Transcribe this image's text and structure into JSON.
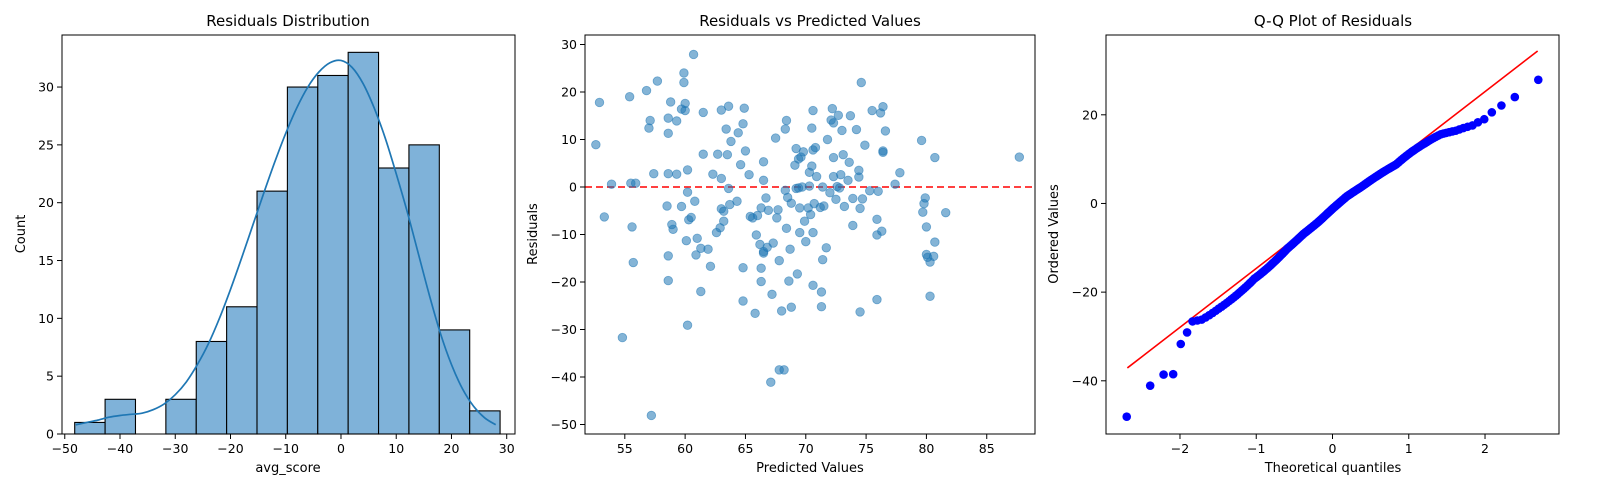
{
  "figure": {
    "background": "#ffffff"
  },
  "chart_data": [
    {
      "type": "bar",
      "title": "Residuals Distribution",
      "xlabel": "avg_score",
      "ylabel": "Count",
      "xlim": [
        -50.5,
        31.5
      ],
      "ylim": [
        0,
        34.5
      ],
      "xticks": [
        -50,
        -40,
        -30,
        -20,
        -10,
        0,
        10,
        20,
        30
      ],
      "yticks": [
        0,
        5,
        10,
        15,
        20,
        25,
        30
      ],
      "bin_edges": [
        -48.2,
        -42.7,
        -37.2,
        -31.7,
        -26.2,
        -20.7,
        -15.2,
        -9.7,
        -4.2,
        1.3,
        6.8,
        12.3,
        17.8,
        23.3,
        28.8
      ],
      "values": [
        1,
        3,
        0,
        3,
        8,
        11,
        21,
        30,
        31,
        33,
        23,
        25,
        9,
        2
      ],
      "bar_color": "#7fb2d9",
      "kde": {
        "color": "#1f77b4",
        "x": [
          -48,
          -46,
          -44,
          -42,
          -40,
          -38,
          -36,
          -34,
          -32,
          -30,
          -28,
          -26,
          -24,
          -22,
          -20,
          -18,
          -16,
          -14,
          -12,
          -10,
          -8,
          -6,
          -4,
          -2,
          0,
          2,
          4,
          6,
          8,
          10,
          12,
          14,
          16,
          18,
          20,
          22,
          24,
          26,
          28
        ],
        "y": [
          0.8,
          1.0,
          1.2,
          1.45,
          1.6,
          1.7,
          1.8,
          2.1,
          2.6,
          3.4,
          4.5,
          6.0,
          7.8,
          10.0,
          12.5,
          15.2,
          18.0,
          20.8,
          23.5,
          26.0,
          28.2,
          30.0,
          31.3,
          32.1,
          32.3,
          31.7,
          30.3,
          28.2,
          25.6,
          22.5,
          19.2,
          15.6,
          12.0,
          8.7,
          6.0,
          3.9,
          2.4,
          1.4,
          0.8
        ]
      }
    },
    {
      "type": "scatter",
      "title": "Residuals vs Predicted Values",
      "xlabel": "Predicted Values",
      "ylabel": "Residuals",
      "xlim": [
        51.7,
        89.0
      ],
      "ylim": [
        -52,
        32
      ],
      "xticks": [
        55,
        60,
        65,
        70,
        75,
        80,
        85
      ],
      "yticks": [
        -50,
        -40,
        -30,
        -20,
        -10,
        0,
        10,
        20,
        30
      ],
      "point_color": "#1f77b4",
      "point_alpha": 0.55,
      "reference_line": {
        "y": 0,
        "color": "#ff0000",
        "style": "dashed"
      },
      "points": [
        [
          52.6,
          8.9
        ],
        [
          52.9,
          17.8
        ],
        [
          53.3,
          -6.3
        ],
        [
          53.9,
          0.6
        ],
        [
          54.8,
          -31.7
        ],
        [
          55.4,
          19
        ],
        [
          55.5,
          0.8
        ],
        [
          55.6,
          -8.4
        ],
        [
          55.7,
          -15.9
        ],
        [
          55.9,
          0.8
        ],
        [
          56.8,
          20.3
        ],
        [
          57.0,
          12.4
        ],
        [
          57.1,
          14
        ],
        [
          57.2,
          -48.1
        ],
        [
          57.4,
          2.8
        ],
        [
          57.7,
          22.3
        ],
        [
          58.5,
          -4
        ],
        [
          58.6,
          2.8
        ],
        [
          58.6,
          11.3
        ],
        [
          58.6,
          14.5
        ],
        [
          58.6,
          -14.5
        ],
        [
          58.6,
          -19.7
        ],
        [
          58.8,
          17.9
        ],
        [
          58.9,
          -7.9
        ],
        [
          59.0,
          -8.9
        ],
        [
          59.3,
          13.9
        ],
        [
          59.3,
          2.7
        ],
        [
          59.7,
          -4.1
        ],
        [
          59.7,
          16.4
        ],
        [
          59.9,
          24
        ],
        [
          59.9,
          22
        ],
        [
          60.0,
          17.6
        ],
        [
          60.0,
          16.1
        ],
        [
          60.1,
          -11.3
        ],
        [
          60.2,
          -29.1
        ],
        [
          60.2,
          3.6
        ],
        [
          60.2,
          -1.1
        ],
        [
          60.3,
          -6.9
        ],
        [
          60.5,
          -6.4
        ],
        [
          60.7,
          27.9
        ],
        [
          60.8,
          -3
        ],
        [
          60.9,
          -14.3
        ],
        [
          61.0,
          -10.8
        ],
        [
          61.3,
          -12.9
        ],
        [
          61.3,
          -22
        ],
        [
          61.5,
          6.9
        ],
        [
          61.5,
          15.7
        ],
        [
          61.9,
          -13.1
        ],
        [
          62.1,
          -16.7
        ],
        [
          62.3,
          2.7
        ],
        [
          62.6,
          -9.6
        ],
        [
          62.7,
          6.9
        ],
        [
          62.9,
          -8.6
        ],
        [
          63.0,
          16.2
        ],
        [
          63.0,
          -4.6
        ],
        [
          63.0,
          1.8
        ],
        [
          63.2,
          -5.1
        ],
        [
          63.2,
          -7.2
        ],
        [
          63.4,
          12.2
        ],
        [
          63.5,
          6.8
        ],
        [
          63.6,
          17
        ],
        [
          63.6,
          -0.3
        ],
        [
          63.7,
          -3.7
        ],
        [
          63.8,
          9.6
        ],
        [
          64.3,
          -3
        ],
        [
          64.4,
          11.4
        ],
        [
          64.6,
          4.7
        ],
        [
          64.8,
          13.3
        ],
        [
          64.8,
          -24
        ],
        [
          64.8,
          -17
        ],
        [
          64.9,
          16.6
        ],
        [
          65.0,
          7.6
        ],
        [
          65.3,
          2.6
        ],
        [
          65.4,
          -6.2
        ],
        [
          65.6,
          -6.5
        ],
        [
          65.8,
          -26.6
        ],
        [
          65.9,
          -10.1
        ],
        [
          66.0,
          -6
        ],
        [
          66.2,
          -12.1
        ],
        [
          66.3,
          -17.1
        ],
        [
          66.3,
          -19.9
        ],
        [
          66.3,
          -4.4
        ],
        [
          66.5,
          5.3
        ],
        [
          66.5,
          -13.6
        ],
        [
          66.5,
          1.4
        ],
        [
          66.5,
          -13.9
        ],
        [
          66.7,
          -2.3
        ],
        [
          66.8,
          -12.7
        ],
        [
          66.9,
          -4.9
        ],
        [
          67.1,
          -41.1
        ],
        [
          67.2,
          -22.6
        ],
        [
          67.3,
          -11.8
        ],
        [
          67.5,
          10.3
        ],
        [
          67.6,
          -6.5
        ],
        [
          67.7,
          -4.8
        ],
        [
          67.8,
          -15.5
        ],
        [
          67.8,
          -38.5
        ],
        [
          68.0,
          -26.1
        ],
        [
          68.2,
          -38.5
        ],
        [
          68.3,
          -0.7
        ],
        [
          68.3,
          12.2
        ],
        [
          68.4,
          14
        ],
        [
          68.4,
          -8.7
        ],
        [
          68.5,
          -2.2
        ],
        [
          68.6,
          -19.8
        ],
        [
          68.7,
          -13.1
        ],
        [
          68.8,
          -3.4
        ],
        [
          68.8,
          -25.3
        ],
        [
          69.1,
          4.6
        ],
        [
          69.2,
          8.1
        ],
        [
          69.2,
          -0.3
        ],
        [
          69.3,
          -18.3
        ],
        [
          69.4,
          5.9
        ],
        [
          69.4,
          -0.2
        ],
        [
          69.5,
          -4.4
        ],
        [
          69.5,
          -9.6
        ],
        [
          69.6,
          6.3
        ],
        [
          69.7,
          0
        ],
        [
          69.8,
          7.4
        ],
        [
          69.9,
          -7.2
        ],
        [
          70.0,
          -11.5
        ],
        [
          70.2,
          -4.4
        ],
        [
          70.3,
          0.2
        ],
        [
          70.3,
          3.1
        ],
        [
          70.4,
          -5.8
        ],
        [
          70.5,
          4.4
        ],
        [
          70.5,
          12.4
        ],
        [
          70.6,
          7.8
        ],
        [
          70.6,
          -9.6
        ],
        [
          70.6,
          -20.7
        ],
        [
          70.6,
          16.1
        ],
        [
          70.7,
          -3.5
        ],
        [
          70.8,
          8.3
        ],
        [
          70.9,
          2.2
        ],
        [
          71.2,
          -4.3
        ],
        [
          71.3,
          -25.2
        ],
        [
          71.3,
          -22.1
        ],
        [
          71.4,
          -15.3
        ],
        [
          71.4,
          0
        ],
        [
          71.5,
          -4
        ],
        [
          71.7,
          -12.8
        ],
        [
          71.8,
          10
        ],
        [
          72.0,
          -1.2
        ],
        [
          72.1,
          14.1
        ],
        [
          72.2,
          16.5
        ],
        [
          72.3,
          2.2
        ],
        [
          72.3,
          6.2
        ],
        [
          72.3,
          13.5
        ],
        [
          72.5,
          -2.6
        ],
        [
          72.6,
          0.1
        ],
        [
          72.7,
          15.1
        ],
        [
          72.8,
          -0.2
        ],
        [
          72.9,
          2.6
        ],
        [
          73.0,
          11.9
        ],
        [
          73.1,
          6.8
        ],
        [
          73.2,
          -4.1
        ],
        [
          73.5,
          1.4
        ],
        [
          73.6,
          5.2
        ],
        [
          73.7,
          15
        ],
        [
          73.9,
          -2.4
        ],
        [
          73.9,
          -8.1
        ],
        [
          74.2,
          12.1
        ],
        [
          74.4,
          2.1
        ],
        [
          74.4,
          3.5
        ],
        [
          74.5,
          -4.5
        ],
        [
          74.5,
          -26.3
        ],
        [
          74.6,
          22
        ],
        [
          74.7,
          -2.5
        ],
        [
          74.9,
          8.8
        ],
        [
          75.3,
          -0.8
        ],
        [
          75.5,
          16.1
        ],
        [
          75.9,
          -6.8
        ],
        [
          75.9,
          -23.7
        ],
        [
          75.9,
          -10.1
        ],
        [
          76.0,
          -0.9
        ],
        [
          76.2,
          15.6
        ],
        [
          76.3,
          -9.3
        ],
        [
          76.4,
          16.9
        ],
        [
          76.4,
          7.6
        ],
        [
          76.4,
          7.3
        ],
        [
          76.6,
          11.8
        ],
        [
          77.4,
          0.6
        ],
        [
          77.8,
          3
        ],
        [
          79.6,
          9.8
        ],
        [
          79.7,
          -5.3
        ],
        [
          79.8,
          -3.5
        ],
        [
          79.9,
          -2.3
        ],
        [
          80.0,
          -14.2
        ],
        [
          80.0,
          -8.4
        ],
        [
          80.1,
          -14.8
        ],
        [
          80.3,
          -23
        ],
        [
          80.3,
          -15.8
        ],
        [
          80.6,
          -14.6
        ],
        [
          80.7,
          6.2
        ],
        [
          80.7,
          -11.6
        ],
        [
          81.6,
          -5.4
        ],
        [
          87.7,
          6.3
        ]
      ]
    },
    {
      "type": "scatter",
      "title": "Q-Q Plot of Residuals",
      "xlabel": "Theoretical quantiles",
      "ylabel": "Ordered Values",
      "xlim": [
        -2.97,
        2.97
      ],
      "ylim": [
        -52,
        38
      ],
      "xticks": [
        -2,
        -1,
        0,
        1,
        2
      ],
      "yticks": [
        -40,
        -20,
        0,
        20
      ],
      "point_color": "#0000ff",
      "fit_line": {
        "color": "#ff0000",
        "x": [
          -2.69,
          2.69
        ],
        "y": [
          -37.1,
          34.4
        ]
      },
      "samples": 201,
      "sorted_values_keypoints": {
        "q": [
          0,
          1,
          2,
          3,
          4,
          5,
          6,
          8,
          10,
          13,
          17,
          22,
          30,
          40,
          55,
          70,
          85,
          100,
          115,
          130,
          145,
          160,
          170,
          178,
          185,
          190,
          194,
          196,
          198,
          199,
          200
        ],
        "v": [
          -48.1,
          -41.1,
          -38.6,
          -38.5,
          -31.7,
          -29.1,
          -26.6,
          -26.2,
          -25.2,
          -23.7,
          -22.0,
          -20.0,
          -17.0,
          -14.3,
          -10.2,
          -6.9,
          -4.2,
          -1.2,
          1.6,
          3.8,
          6.3,
          8.8,
          11.5,
          13.6,
          15.6,
          16.4,
          17.6,
          19.0,
          22.1,
          24.0,
          27.9
        ]
      }
    }
  ]
}
